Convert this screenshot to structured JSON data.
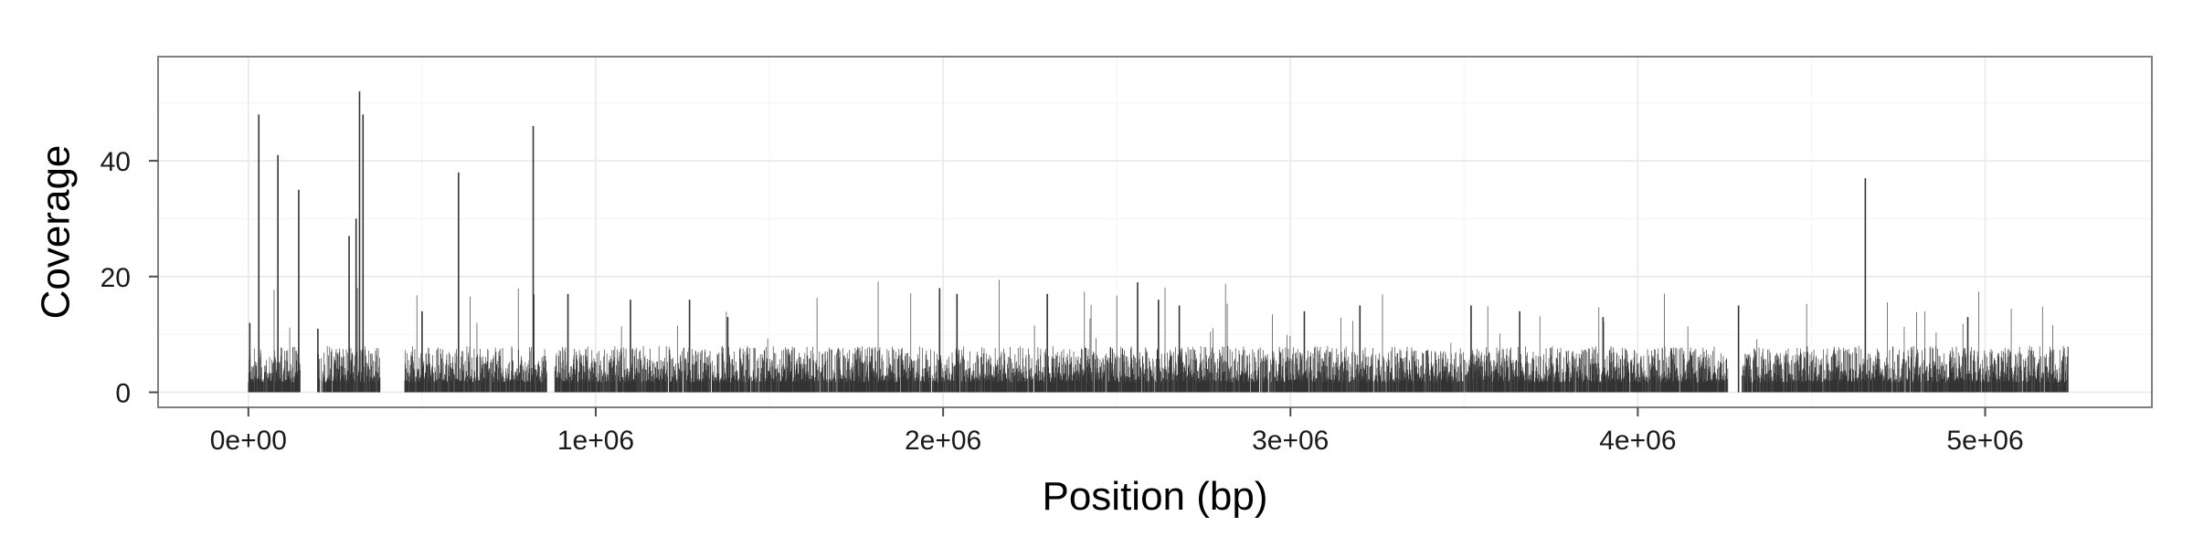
{
  "chart_data": {
    "type": "bar",
    "title": "",
    "xlabel": "Position (bp)",
    "ylabel": "Coverage",
    "xlim": [
      -260000,
      5480000
    ],
    "ylim": [
      -2.6,
      58
    ],
    "x_ticks": [
      0,
      1000000,
      2000000,
      3000000,
      4000000,
      5000000
    ],
    "x_tick_labels": [
      "0e+00",
      "1e+06",
      "2e+06",
      "3e+06",
      "4e+06",
      "5e+06"
    ],
    "y_ticks": [
      0,
      20,
      40
    ],
    "y_tick_labels": [
      "0",
      "20",
      "40"
    ],
    "grid": true,
    "legend": "none",
    "colors": {
      "bar": "#333333",
      "panel_background": "#ffffff",
      "panel_border": "#7f7f7f",
      "grid_major": "#ebebeb",
      "grid_minor": "#f5f5f5",
      "axis_text": "#1a1a1a"
    },
    "series": [
      {
        "x_start": 0,
        "x_end": 5240000,
        "bin_width": 1000,
        "baseline_level": 5,
        "gaps": [
          [
            150000,
            200000
          ],
          [
            380000,
            450000
          ],
          [
            860000,
            880000
          ],
          [
            4260000,
            4300000
          ]
        ],
        "peaks": [
          {
            "x": 4000,
            "y": 12
          },
          {
            "x": 30000,
            "y": 48
          },
          {
            "x": 85000,
            "y": 41
          },
          {
            "x": 145000,
            "y": 35
          },
          {
            "x": 200000,
            "y": 11
          },
          {
            "x": 290000,
            "y": 27
          },
          {
            "x": 310000,
            "y": 30
          },
          {
            "x": 320000,
            "y": 52
          },
          {
            "x": 330000,
            "y": 48
          },
          {
            "x": 500000,
            "y": 14
          },
          {
            "x": 605000,
            "y": 38
          },
          {
            "x": 820000,
            "y": 46
          },
          {
            "x": 920000,
            "y": 17
          },
          {
            "x": 1100000,
            "y": 16
          },
          {
            "x": 1270000,
            "y": 16
          },
          {
            "x": 1380000,
            "y": 13
          },
          {
            "x": 1990000,
            "y": 18
          },
          {
            "x": 2040000,
            "y": 17
          },
          {
            "x": 2300000,
            "y": 17
          },
          {
            "x": 2560000,
            "y": 19
          },
          {
            "x": 2620000,
            "y": 16
          },
          {
            "x": 2680000,
            "y": 15
          },
          {
            "x": 3040000,
            "y": 14
          },
          {
            "x": 3200000,
            "y": 15
          },
          {
            "x": 3520000,
            "y": 15
          },
          {
            "x": 3660000,
            "y": 14
          },
          {
            "x": 3900000,
            "y": 13
          },
          {
            "x": 4290000,
            "y": 15
          },
          {
            "x": 4655000,
            "y": 37
          },
          {
            "x": 4950000,
            "y": 13
          }
        ]
      }
    ]
  }
}
